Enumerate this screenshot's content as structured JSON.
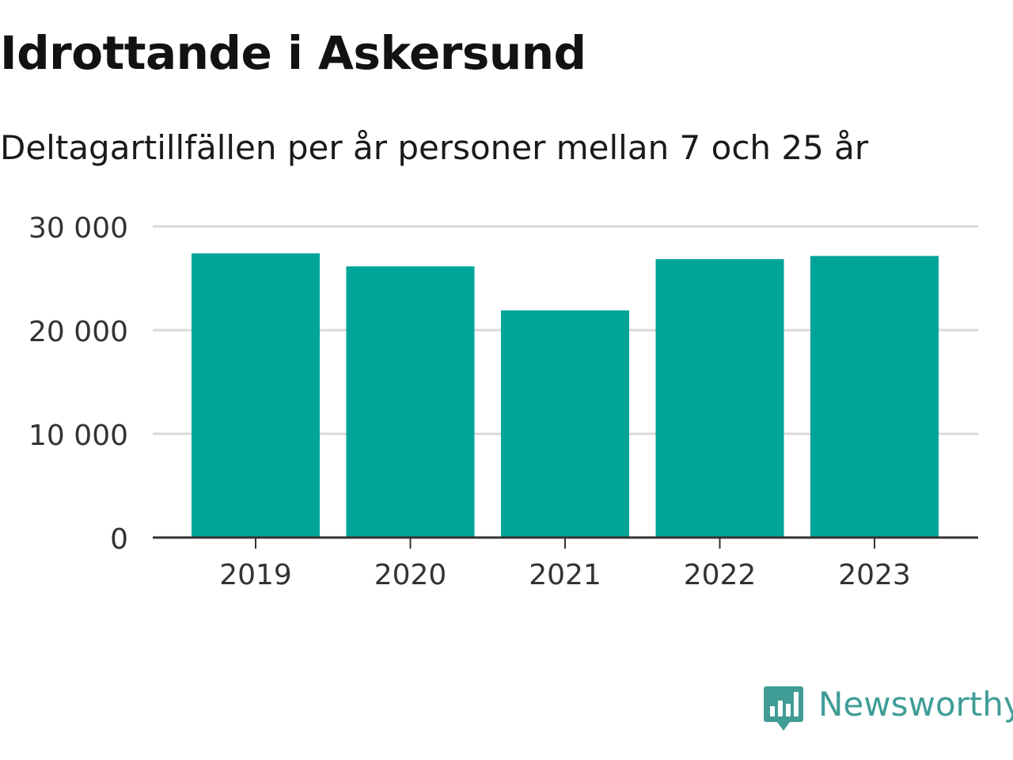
{
  "colors": {
    "bar": "#00a499",
    "grid": "#d9d9d9",
    "axis": "#333333",
    "tick_text": "#333333",
    "brand": "#3f9d96"
  },
  "brand": {
    "name": "Newsworthy",
    "icon": "newsworthy-logo-icon"
  },
  "chart_data": {
    "type": "bar",
    "title": "Idrottande i Askersund",
    "subtitle": "Deltagartillfällen per år personer mellan 7 och 25 år",
    "xlabel": "",
    "ylabel": "",
    "categories": [
      "2019",
      "2020",
      "2021",
      "2022",
      "2023"
    ],
    "values": [
      27400,
      26150,
      21900,
      26850,
      27150
    ],
    "ylim": [
      0,
      30000
    ],
    "yticks": [
      0,
      10000,
      20000,
      30000
    ],
    "ytick_labels": [
      "0",
      "10 000",
      "20 000",
      "30 000"
    ],
    "grid": true,
    "legend": "none"
  }
}
